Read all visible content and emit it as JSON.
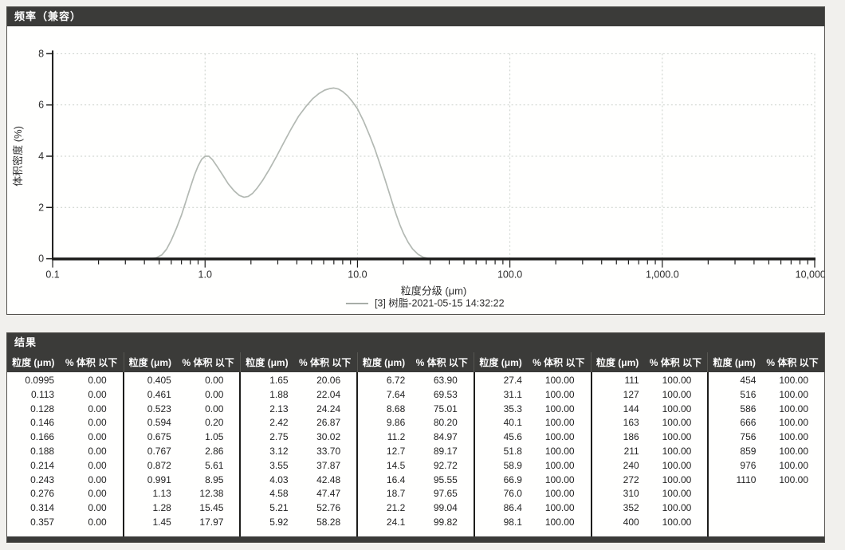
{
  "colors": {
    "panel_header_bg": "#3b3b39",
    "panel_border": "#55534f",
    "curve": "#b3b9b3",
    "grid": "#c9cfc9",
    "axis": "#1c1c1b",
    "text": "#2e2e2e"
  },
  "chart_data": {
    "type": "line",
    "panel_title": "频率（兼容）",
    "xlabel": "粒度分级 (μm)",
    "ylabel": "体积密度 (%)",
    "x_scale": "log",
    "xlim": [
      0.1,
      10000
    ],
    "ylim": [
      0,
      8
    ],
    "x_ticks": [
      {
        "v": 0.1,
        "label": "0.1"
      },
      {
        "v": 1,
        "label": "1.0"
      },
      {
        "v": 10,
        "label": "10.0"
      },
      {
        "v": 100,
        "label": "100.0"
      },
      {
        "v": 1000,
        "label": "1,000.0"
      },
      {
        "v": 10000,
        "label": "10,000.0"
      }
    ],
    "y_ticks": [
      0,
      2,
      4,
      6,
      8
    ],
    "grid_x": [
      1,
      10,
      100,
      1000,
      10000
    ],
    "grid_y": [
      2,
      4,
      6,
      8
    ],
    "legend": {
      "label": "[3] 树脂-2021-05-15 14:32:22"
    },
    "series": [
      {
        "name": "[3] 树脂-2021-05-15 14:32:22",
        "color": "#b3b9b3",
        "points": [
          [
            0.44,
            0
          ],
          [
            0.48,
            0.04
          ],
          [
            0.52,
            0.15
          ],
          [
            0.56,
            0.38
          ],
          [
            0.6,
            0.72
          ],
          [
            0.65,
            1.2
          ],
          [
            0.7,
            1.7
          ],
          [
            0.75,
            2.25
          ],
          [
            0.8,
            2.78
          ],
          [
            0.85,
            3.25
          ],
          [
            0.9,
            3.62
          ],
          [
            0.95,
            3.88
          ],
          [
            1.0,
            4.0
          ],
          [
            1.06,
            4.0
          ],
          [
            1.12,
            3.86
          ],
          [
            1.2,
            3.6
          ],
          [
            1.3,
            3.28
          ],
          [
            1.42,
            2.92
          ],
          [
            1.55,
            2.65
          ],
          [
            1.68,
            2.47
          ],
          [
            1.8,
            2.4
          ],
          [
            1.92,
            2.43
          ],
          [
            2.05,
            2.55
          ],
          [
            2.2,
            2.76
          ],
          [
            2.4,
            3.08
          ],
          [
            2.65,
            3.5
          ],
          [
            2.95,
            4.0
          ],
          [
            3.3,
            4.55
          ],
          [
            3.7,
            5.1
          ],
          [
            4.1,
            5.55
          ],
          [
            4.6,
            5.95
          ],
          [
            5.1,
            6.25
          ],
          [
            5.6,
            6.45
          ],
          [
            6.1,
            6.58
          ],
          [
            6.6,
            6.64
          ],
          [
            7.0,
            6.66
          ],
          [
            7.5,
            6.62
          ],
          [
            8.0,
            6.52
          ],
          [
            8.6,
            6.36
          ],
          [
            9.2,
            6.15
          ],
          [
            10,
            5.85
          ],
          [
            11,
            5.35
          ],
          [
            12,
            4.82
          ],
          [
            13,
            4.28
          ],
          [
            14,
            3.72
          ],
          [
            15,
            3.18
          ],
          [
            16,
            2.65
          ],
          [
            17,
            2.15
          ],
          [
            18,
            1.7
          ],
          [
            19,
            1.32
          ],
          [
            20,
            1.0
          ],
          [
            21.5,
            0.64
          ],
          [
            23,
            0.38
          ],
          [
            25,
            0.17
          ],
          [
            27,
            0.06
          ],
          [
            29,
            0.015
          ],
          [
            31,
            0
          ]
        ]
      }
    ]
  },
  "results": {
    "title": "结果",
    "col_headers": {
      "size": "粒度 (μm)",
      "pct": "% 体积 以下"
    },
    "groups": [
      {
        "rows": [
          [
            "0.0995",
            "0.00"
          ],
          [
            "0.113",
            "0.00"
          ],
          [
            "0.128",
            "0.00"
          ],
          [
            "0.146",
            "0.00"
          ],
          [
            "0.166",
            "0.00"
          ],
          [
            "0.188",
            "0.00"
          ],
          [
            "0.214",
            "0.00"
          ],
          [
            "0.243",
            "0.00"
          ],
          [
            "0.276",
            "0.00"
          ],
          [
            "0.314",
            "0.00"
          ],
          [
            "0.357",
            "0.00"
          ]
        ]
      },
      {
        "rows": [
          [
            "0.405",
            "0.00"
          ],
          [
            "0.461",
            "0.00"
          ],
          [
            "0.523",
            "0.00"
          ],
          [
            "0.594",
            "0.20"
          ],
          [
            "0.675",
            "1.05"
          ],
          [
            "0.767",
            "2.86"
          ],
          [
            "0.872",
            "5.61"
          ],
          [
            "0.991",
            "8.95"
          ],
          [
            "1.13",
            "12.38"
          ],
          [
            "1.28",
            "15.45"
          ],
          [
            "1.45",
            "17.97"
          ]
        ]
      },
      {
        "rows": [
          [
            "1.65",
            "20.06"
          ],
          [
            "1.88",
            "22.04"
          ],
          [
            "2.13",
            "24.24"
          ],
          [
            "2.42",
            "26.87"
          ],
          [
            "2.75",
            "30.02"
          ],
          [
            "3.12",
            "33.70"
          ],
          [
            "3.55",
            "37.87"
          ],
          [
            "4.03",
            "42.48"
          ],
          [
            "4.58",
            "47.47"
          ],
          [
            "5.21",
            "52.76"
          ],
          [
            "5.92",
            "58.28"
          ]
        ]
      },
      {
        "rows": [
          [
            "6.72",
            "63.90"
          ],
          [
            "7.64",
            "69.53"
          ],
          [
            "8.68",
            "75.01"
          ],
          [
            "9.86",
            "80.20"
          ],
          [
            "11.2",
            "84.97"
          ],
          [
            "12.7",
            "89.17"
          ],
          [
            "14.5",
            "92.72"
          ],
          [
            "16.4",
            "95.55"
          ],
          [
            "18.7",
            "97.65"
          ],
          [
            "21.2",
            "99.04"
          ],
          [
            "24.1",
            "99.82"
          ]
        ]
      },
      {
        "rows": [
          [
            "27.4",
            "100.00"
          ],
          [
            "31.1",
            "100.00"
          ],
          [
            "35.3",
            "100.00"
          ],
          [
            "40.1",
            "100.00"
          ],
          [
            "45.6",
            "100.00"
          ],
          [
            "51.8",
            "100.00"
          ],
          [
            "58.9",
            "100.00"
          ],
          [
            "66.9",
            "100.00"
          ],
          [
            "76.0",
            "100.00"
          ],
          [
            "86.4",
            "100.00"
          ],
          [
            "98.1",
            "100.00"
          ]
        ]
      },
      {
        "rows": [
          [
            "111",
            "100.00"
          ],
          [
            "127",
            "100.00"
          ],
          [
            "144",
            "100.00"
          ],
          [
            "163",
            "100.00"
          ],
          [
            "186",
            "100.00"
          ],
          [
            "211",
            "100.00"
          ],
          [
            "240",
            "100.00"
          ],
          [
            "272",
            "100.00"
          ],
          [
            "310",
            "100.00"
          ],
          [
            "352",
            "100.00"
          ],
          [
            "400",
            "100.00"
          ]
        ]
      },
      {
        "rows": [
          [
            "454",
            "100.00"
          ],
          [
            "516",
            "100.00"
          ],
          [
            "586",
            "100.00"
          ],
          [
            "666",
            "100.00"
          ],
          [
            "756",
            "100.00"
          ],
          [
            "859",
            "100.00"
          ],
          [
            "976",
            "100.00"
          ],
          [
            "1110",
            "100.00"
          ]
        ]
      }
    ]
  }
}
